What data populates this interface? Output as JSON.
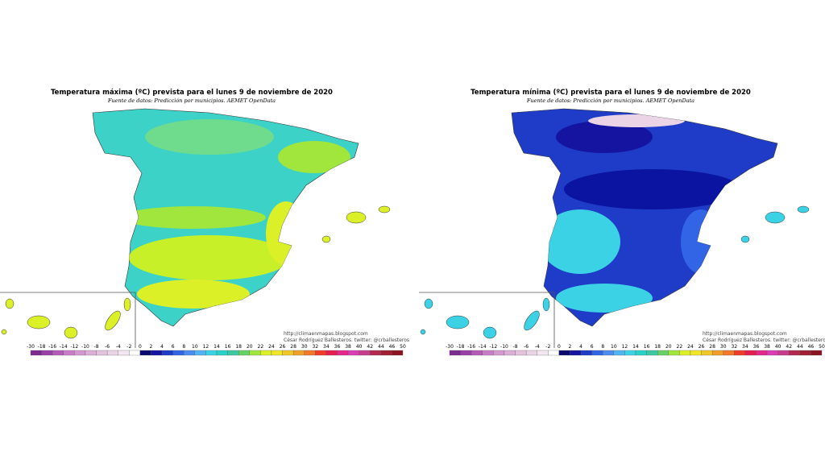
{
  "maps": [
    {
      "title": "Temperatura máxima (ºC) prevista para el lunes 9 de noviembre de 2020",
      "source": "Fuente de datos: Predicción por municipios. AEMET OpenData",
      "credits": [
        "http://climaenmapas.blogspot.com",
        "César Rodríguez Ballesteros. twitter: @crballesteros"
      ]
    },
    {
      "title": "Temperatura mínima (ºC) prevista para el lunes 9 de noviembre de 2020",
      "source": "Fuente de datos: Predicción por municipios. AEMET OpenData",
      "credits": [
        "http://climaenmapas.blogspot.com",
        "César Rodríguez Ballesteros. twitter: @crballesteros"
      ]
    }
  ],
  "legend": {
    "labels": [
      -30,
      -18,
      -16,
      -14,
      -12,
      -10,
      -8,
      -6,
      -4,
      -2,
      0,
      2,
      4,
      6,
      8,
      10,
      12,
      14,
      16,
      18,
      20,
      22,
      24,
      26,
      28,
      30,
      32,
      34,
      36,
      38,
      40,
      42,
      44,
      46,
      50
    ],
    "colors": [
      "#7b2a8f",
      "#9b3fa8",
      "#b45bb8",
      "#c77cc6",
      "#d497cf",
      "#dcaed8",
      "#e3c2de",
      "#ead4e6",
      "#f2e6f0",
      "#ffffff",
      "#0a0a6e",
      "#1414a0",
      "#1e3cc8",
      "#3264e6",
      "#4a8cf0",
      "#50b4f0",
      "#3cd2e6",
      "#28d2c8",
      "#3cc8a0",
      "#64d264",
      "#a0e63c",
      "#dcf028",
      "#f0e628",
      "#f0c828",
      "#f0a028",
      "#f07828",
      "#f03c28",
      "#e61e50",
      "#e6288c",
      "#dc3cb4",
      "#c83c8c",
      "#b42850",
      "#a01e32",
      "#8c1420"
    ]
  }
}
